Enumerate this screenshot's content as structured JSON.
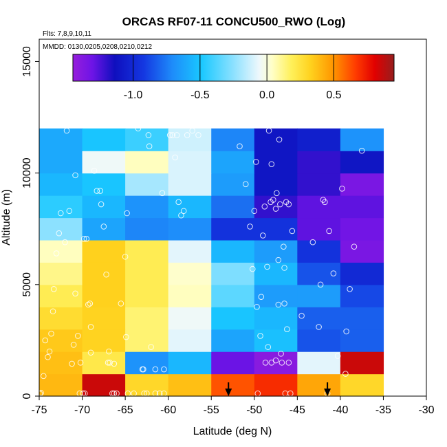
{
  "chart_data": {
    "type": "heatmap",
    "title": "ORCAS RF07-11 CONCU500_RWO (Log)",
    "annotations": {
      "flights": "Flts: 7,8,9,10,11",
      "dates": "MMDD: 0130,0205,0208,0210,0212"
    },
    "xlabel": "Latitude (deg N)",
    "ylabel": "Altitude (m)",
    "xlim": [
      -75,
      -30
    ],
    "ylim": [
      0,
      16000
    ],
    "x_ticks": [
      -75,
      -70,
      -65,
      -60,
      -55,
      -50,
      -45,
      -40,
      -35,
      -30
    ],
    "y_ticks": [
      0,
      5000,
      10000,
      15000
    ],
    "x_tick_labels": [
      "-75",
      "-70",
      "-65",
      "-60",
      "-55",
      "-50",
      "-45",
      "-40",
      "-35",
      "-30"
    ],
    "y_tick_labels": [
      "0",
      "5000",
      "10000",
      "15000"
    ],
    "colorbar": {
      "range": [
        -1.45,
        0.95
      ],
      "ticks": [
        -1.0,
        -0.5,
        0.0,
        0.5
      ],
      "tick_labels": [
        "-1.0",
        "-0.5",
        "0.0",
        "0.5"
      ]
    },
    "grid": {
      "lat_edges": [
        -75,
        -70,
        -65,
        -60,
        -55,
        -50,
        -45,
        -40,
        -35
      ],
      "alt_edges": [
        0,
        1000,
        2000,
        3000,
        4000,
        5000,
        6000,
        7000,
        8000,
        9000,
        10000,
        11000,
        12000
      ]
    },
    "values": [
      [
        0.4,
        0.85,
        0.3,
        0.38,
        0.62,
        0.7,
        0.45,
        0.3
      ],
      [
        0.38,
        0.22,
        -0.68,
        -0.55,
        -1.3,
        -1.4,
        -0.08,
        0.85
      ],
      [
        0.35,
        0.32,
        0.15,
        -0.08,
        -0.62,
        -0.52,
        -0.85,
        -0.82
      ],
      [
        0.28,
        0.32,
        0.15,
        -0.05,
        -0.5,
        -0.55,
        -0.82,
        -0.82
      ],
      [
        0.2,
        0.33,
        0.2,
        0.05,
        -0.35,
        -0.65,
        -0.65,
        -0.88
      ],
      [
        0.12,
        0.33,
        0.2,
        0.03,
        -0.28,
        -0.55,
        -0.85,
        -1.0
      ],
      [
        0.05,
        0.33,
        0.2,
        -0.08,
        -0.55,
        -0.65,
        -0.95,
        -1.35
      ],
      [
        -0.25,
        -0.62,
        -0.72,
        -0.7,
        -0.95,
        -0.95,
        -1.28,
        -1.32
      ],
      [
        -0.45,
        -0.55,
        -0.68,
        -0.55,
        -0.78,
        -1.2,
        -1.28,
        -1.28
      ],
      [
        -0.55,
        -0.5,
        -0.2,
        -0.1,
        -0.65,
        -1.1,
        -1.2,
        -1.35
      ],
      [
        -0.6,
        -0.05,
        0.05,
        -0.1,
        -0.62,
        -1.1,
        -1.2,
        -1.1
      ],
      [
        -0.6,
        -0.5,
        -0.42,
        -0.12,
        -0.72,
        -1.1,
        -1.05,
        -0.68
      ]
    ],
    "arrows_latitude": [
      -53,
      -41.5
    ],
    "sample_points": [
      [
        -74.9,
        100
      ],
      [
        -74.8,
        150
      ],
      [
        -74.5,
        900
      ],
      [
        -74.3,
        2500
      ],
      [
        -74.0,
        1750
      ],
      [
        -73.8,
        2000
      ],
      [
        -73.6,
        2800
      ],
      [
        -73.4,
        3800
      ],
      [
        -73.3,
        4800
      ],
      [
        -73.0,
        6400
      ],
      [
        -72.7,
        7300
      ],
      [
        -72.5,
        8200
      ],
      [
        -72.0,
        6900
      ],
      [
        -71.8,
        11900
      ],
      [
        -71.5,
        8300
      ],
      [
        -70.8,
        9900
      ],
      [
        -70.8,
        4600
      ],
      [
        -70.5,
        2700
      ],
      [
        -71.0,
        2300
      ],
      [
        -71.2,
        1450
      ],
      [
        -70.2,
        1500
      ],
      [
        -70.3,
        120
      ],
      [
        -69.9,
        120
      ],
      [
        -69.7,
        120
      ],
      [
        -69.8,
        7050
      ],
      [
        -69.5,
        7050
      ],
      [
        -69.3,
        4100
      ],
      [
        -69.1,
        4150
      ],
      [
        -69.0,
        3100
      ],
      [
        -69.0,
        1950
      ],
      [
        -68.6,
        10100
      ],
      [
        -68.3,
        9200
      ],
      [
        -67.9,
        9200
      ],
      [
        -67.8,
        8600
      ],
      [
        -67.5,
        7600
      ],
      [
        -67.2,
        5450
      ],
      [
        -67.0,
        1500
      ],
      [
        -66.9,
        2000
      ],
      [
        -66.8,
        1500
      ],
      [
        -66.3,
        1450
      ],
      [
        -66.3,
        120
      ],
      [
        -66.0,
        120
      ],
      [
        -66.5,
        120
      ],
      [
        -65.5,
        4150
      ],
      [
        -65.0,
        6250
      ],
      [
        -64.9,
        2650
      ],
      [
        -64.8,
        8200
      ],
      [
        -64.7,
        120
      ],
      [
        -64.0,
        120
      ],
      [
        -63.5,
        12000
      ],
      [
        -63.0,
        1200
      ],
      [
        -62.9,
        1200
      ],
      [
        -62.8,
        120
      ],
      [
        -62.5,
        120
      ],
      [
        -62.3,
        11700
      ],
      [
        -62.2,
        11200
      ],
      [
        -62.0,
        2200
      ],
      [
        -61.5,
        120
      ],
      [
        -61.0,
        120
      ],
      [
        -60.5,
        120
      ],
      [
        -60.5,
        1200
      ],
      [
        -61.5,
        1200
      ],
      [
        -60.7,
        9100
      ],
      [
        -59.8,
        11700
      ],
      [
        -59.5,
        11700
      ],
      [
        -59.2,
        10700
      ],
      [
        -59.0,
        11700
      ],
      [
        -58.8,
        8700
      ],
      [
        -58.5,
        8100
      ],
      [
        -58.2,
        8300
      ],
      [
        -57.8,
        11700
      ],
      [
        -57.2,
        11900
      ],
      [
        -56.5,
        11700
      ],
      [
        -51.7,
        11200
      ],
      [
        -51.0,
        9500
      ],
      [
        -50.5,
        7600
      ],
      [
        -50.2,
        5700
      ],
      [
        -50.0,
        8300
      ],
      [
        -49.8,
        10500
      ],
      [
        -49.7,
        4000
      ],
      [
        -49.6,
        120
      ],
      [
        -49.3,
        2700
      ],
      [
        -49.2,
        4450
      ],
      [
        -49.0,
        7200
      ],
      [
        -48.8,
        8500
      ],
      [
        -48.7,
        1500
      ],
      [
        -48.5,
        5800
      ],
      [
        -48.4,
        2200
      ],
      [
        -48.3,
        11900
      ],
      [
        -48.1,
        8700
      ],
      [
        -48.0,
        1500
      ],
      [
        -48.0,
        10400
      ],
      [
        -47.8,
        8800
      ],
      [
        -47.5,
        8400
      ],
      [
        -47.5,
        1600
      ],
      [
        -47.4,
        9100
      ],
      [
        -47.2,
        4100
      ],
      [
        -47.2,
        6100
      ],
      [
        -47.1,
        11500
      ],
      [
        -47.0,
        8600
      ],
      [
        -46.9,
        1900
      ],
      [
        -46.8,
        1500
      ],
      [
        -46.6,
        6700
      ],
      [
        -46.5,
        4150
      ],
      [
        -46.5,
        5750
      ],
      [
        -46.4,
        120
      ],
      [
        -46.3,
        8700
      ],
      [
        -46.2,
        3000
      ],
      [
        -46.0,
        1500
      ],
      [
        -46.0,
        8600
      ],
      [
        -45.8,
        120
      ],
      [
        -45.6,
        7400
      ],
      [
        -44.5,
        3600
      ],
      [
        -43.2,
        6900
      ],
      [
        -42.5,
        3100
      ],
      [
        -42.3,
        5000
      ],
      [
        -42.0,
        8800
      ],
      [
        -41.8,
        8700
      ],
      [
        -41.3,
        7400
      ],
      [
        -41.5,
        120
      ],
      [
        -40.8,
        5500
      ],
      [
        -40.3,
        1800
      ],
      [
        -39.8,
        9300
      ],
      [
        -39.3,
        2900
      ],
      [
        -39.4,
        1000
      ],
      [
        -38.9,
        4800
      ],
      [
        -38.4,
        6700
      ],
      [
        -37.5,
        11000
      ]
    ]
  }
}
